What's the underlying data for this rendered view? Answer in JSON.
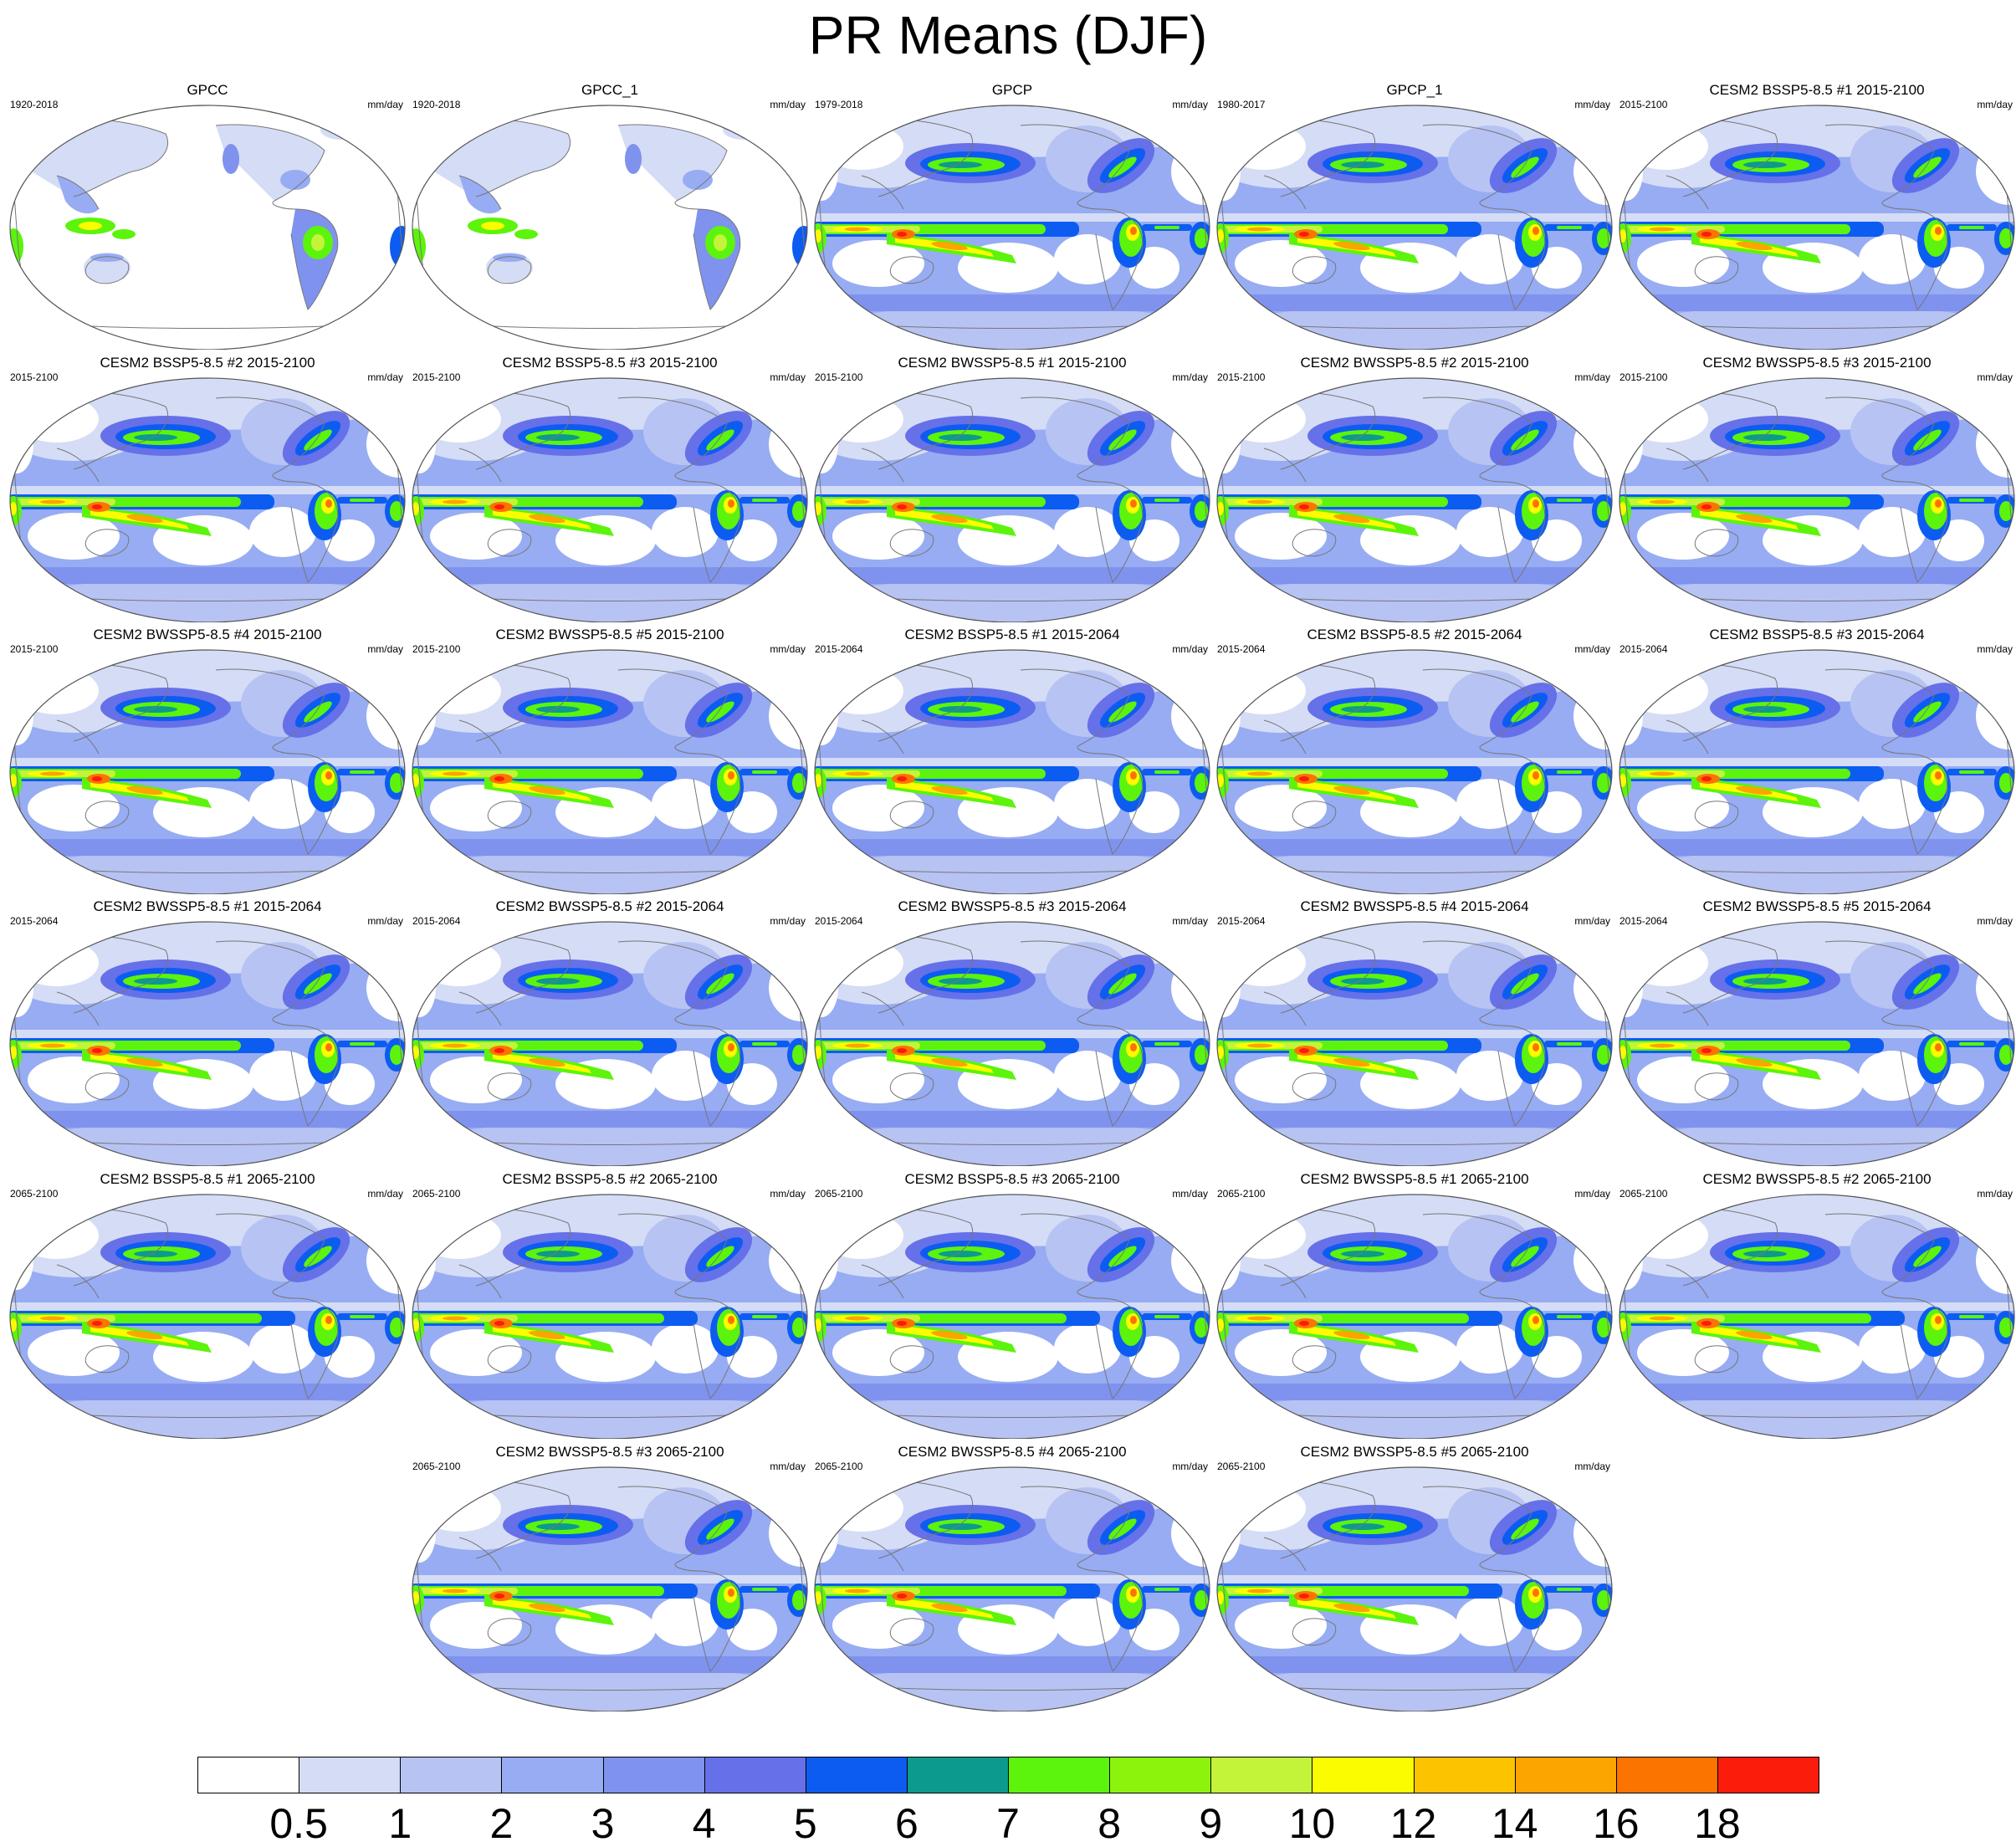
{
  "title": "PR Means (DJF)",
  "units": "mm/day",
  "colorbar": {
    "labels": [
      "0.5",
      "1",
      "2",
      "3",
      "4",
      "5",
      "6",
      "7",
      "8",
      "9",
      "10",
      "12",
      "14",
      "16",
      "18"
    ],
    "colors": [
      "#ffffff",
      "#d5dcf6",
      "#b7c3f2",
      "#97acf2",
      "#7f92ee",
      "#6670e8",
      "#0c5cf2",
      "#0c9a8e",
      "#5cf40c",
      "#8cf40c",
      "#c4f43a",
      "#fcfc00",
      "#fcc400",
      "#fca400",
      "#fc7400",
      "#fc1c0c"
    ]
  },
  "panels": [
    {
      "title": "GPCC",
      "period": "1920-2018",
      "units": "mm/day",
      "type": "obs-land"
    },
    {
      "title": "GPCC_1",
      "period": "1920-2018",
      "units": "mm/day",
      "type": "obs-land"
    },
    {
      "title": "GPCP",
      "period": "1979-2018",
      "units": "mm/day",
      "type": "obs-global"
    },
    {
      "title": "GPCP_1",
      "period": "1980-2017",
      "units": "mm/day",
      "type": "obs-global"
    },
    {
      "title": "CESM2 BSSP5-8.5 #1 2015-2100",
      "period": "2015-2100",
      "units": "mm/day",
      "type": "model"
    },
    {
      "title": "CESM2 BSSP5-8.5 #2 2015-2100",
      "period": "2015-2100",
      "units": "mm/day",
      "type": "model"
    },
    {
      "title": "CESM2 BSSP5-8.5 #3 2015-2100",
      "period": "2015-2100",
      "units": "mm/day",
      "type": "model"
    },
    {
      "title": "CESM2 BWSSP5-8.5 #1 2015-2100",
      "period": "2015-2100",
      "units": "mm/day",
      "type": "model"
    },
    {
      "title": "CESM2 BWSSP5-8.5 #2 2015-2100",
      "period": "2015-2100",
      "units": "mm/day",
      "type": "model"
    },
    {
      "title": "CESM2 BWSSP5-8.5 #3 2015-2100",
      "period": "2015-2100",
      "units": "mm/day",
      "type": "model"
    },
    {
      "title": "CESM2 BWSSP5-8.5 #4 2015-2100",
      "period": "2015-2100",
      "units": "mm/day",
      "type": "model"
    },
    {
      "title": "CESM2 BWSSP5-8.5 #5 2015-2100",
      "period": "2015-2100",
      "units": "mm/day",
      "type": "model"
    },
    {
      "title": "CESM2 BSSP5-8.5 #1 2015-2064",
      "period": "2015-2064",
      "units": "mm/day",
      "type": "model"
    },
    {
      "title": "CESM2 BSSP5-8.5 #2 2015-2064",
      "period": "2015-2064",
      "units": "mm/day",
      "type": "model"
    },
    {
      "title": "CESM2 BSSP5-8.5 #3 2015-2064",
      "period": "2015-2064",
      "units": "mm/day",
      "type": "model"
    },
    {
      "title": "CESM2 BWSSP5-8.5 #1 2015-2064",
      "period": "2015-2064",
      "units": "mm/day",
      "type": "model"
    },
    {
      "title": "CESM2 BWSSP5-8.5 #2 2015-2064",
      "period": "2015-2064",
      "units": "mm/day",
      "type": "model"
    },
    {
      "title": "CESM2 BWSSP5-8.5 #3 2015-2064",
      "period": "2015-2064",
      "units": "mm/day",
      "type": "model"
    },
    {
      "title": "CESM2 BWSSP5-8.5 #4 2015-2064",
      "period": "2015-2064",
      "units": "mm/day",
      "type": "model"
    },
    {
      "title": "CESM2 BWSSP5-8.5 #5 2015-2064",
      "period": "2015-2064",
      "units": "mm/day",
      "type": "model"
    },
    {
      "title": "CESM2 BSSP5-8.5 #1 2065-2100",
      "period": "2065-2100",
      "units": "mm/day",
      "type": "model"
    },
    {
      "title": "CESM2 BSSP5-8.5 #2 2065-2100",
      "period": "2065-2100",
      "units": "mm/day",
      "type": "model"
    },
    {
      "title": "CESM2 BSSP5-8.5 #3 2065-2100",
      "period": "2065-2100",
      "units": "mm/day",
      "type": "model"
    },
    {
      "title": "CESM2 BWSSP5-8.5 #1 2065-2100",
      "period": "2065-2100",
      "units": "mm/day",
      "type": "model"
    },
    {
      "title": "CESM2 BWSSP5-8.5 #2 2065-2100",
      "period": "2065-2100",
      "units": "mm/day",
      "type": "model"
    },
    {
      "title": "CESM2 BWSSP5-8.5 #3 2065-2100",
      "period": "2065-2100",
      "units": "mm/day",
      "type": "model"
    },
    {
      "title": "CESM2 BWSSP5-8.5 #4 2065-2100",
      "period": "2065-2100",
      "units": "mm/day",
      "type": "model"
    },
    {
      "title": "CESM2 BWSSP5-8.5 #5 2065-2100",
      "period": "2065-2100",
      "units": "mm/day",
      "type": "model"
    }
  ]
}
